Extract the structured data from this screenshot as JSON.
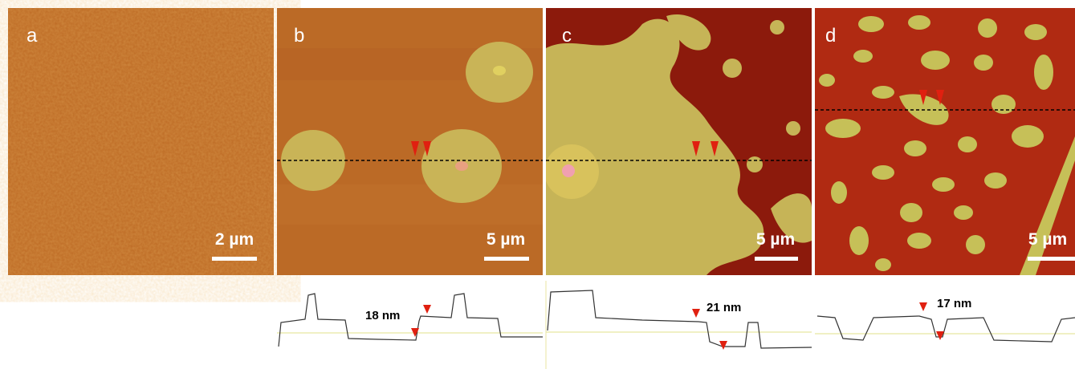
{
  "panels": [
    {
      "label": "a",
      "scale_bar": "2 µm"
    },
    {
      "label": "b",
      "scale_bar": "5 µm",
      "profile_label": "18 nm"
    },
    {
      "label": "c",
      "scale_bar": "5 µm",
      "profile_label": "21 nm"
    },
    {
      "label": "d",
      "scale_bar": "5 µm",
      "profile_label": "17 nm"
    }
  ]
}
